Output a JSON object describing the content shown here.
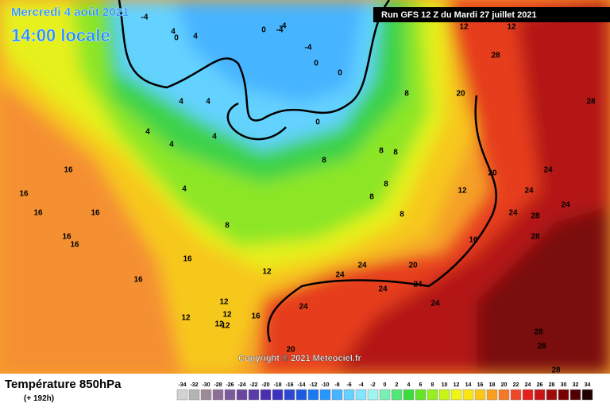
{
  "header": {
    "date": "Mercredi 4 août 2021",
    "time": "14:00 locale",
    "run": "Run GFS 12 Z du Mardi 27 juillet 2021"
  },
  "copyright": "Copyright © 2021 Meteociel.fr",
  "footer": {
    "title": "Température 850hPa",
    "lead": "(+ 192h)"
  },
  "legend": {
    "values": [
      -34,
      -32,
      -30,
      -28,
      -26,
      -24,
      -22,
      -20,
      -18,
      -16,
      -14,
      -12,
      -10,
      -8,
      -6,
      -4,
      -2,
      0,
      2,
      4,
      6,
      8,
      10,
      12,
      14,
      16,
      18,
      20,
      22,
      24,
      26,
      28,
      30,
      32,
      34
    ],
    "colors": [
      "#d2d2d2",
      "#b4b4b4",
      "#9a8a9a",
      "#8c6e96",
      "#7a5a9a",
      "#6a46a0",
      "#5a3aa8",
      "#4a2eb0",
      "#3c32c0",
      "#2e46d0",
      "#1e5ae0",
      "#1a78f0",
      "#2896ff",
      "#46b4ff",
      "#64d2ff",
      "#82e6ff",
      "#a0f5f0",
      "#78f0b4",
      "#50e678",
      "#3cdc3c",
      "#64e628",
      "#96f01e",
      "#c8f514",
      "#f0f514",
      "#fae614",
      "#fac814",
      "#faa01e",
      "#f57828",
      "#f04628",
      "#e61e1e",
      "#c81414",
      "#a00a0a",
      "#780000",
      "#500000",
      "#1e0000"
    ]
  },
  "map_labels": [
    "-4",
    "4",
    "0",
    "-4",
    "4",
    "4",
    "4",
    "0",
    "-4",
    "-4",
    "0",
    "0",
    "4",
    "4",
    "4",
    "4",
    "0",
    "8",
    "8",
    "8",
    "8",
    "8",
    "8",
    "12",
    "12",
    "12",
    "16",
    "16",
    "16",
    "16",
    "16",
    "16",
    "16",
    "16",
    "12",
    "12",
    "12",
    "16",
    "20",
    "20",
    "24",
    "24",
    "24",
    "24",
    "24",
    "24",
    "28",
    "28",
    "28",
    "28",
    "28",
    "24",
    "24",
    "20",
    "12",
    "16",
    "20",
    "24",
    "24",
    "28",
    "28",
    "12",
    "12",
    "8",
    "8"
  ]
}
